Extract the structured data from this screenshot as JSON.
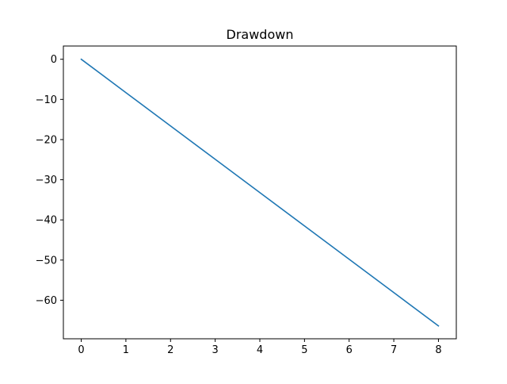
{
  "chart_data": {
    "type": "line",
    "title": "Drawdown",
    "xlabel": "",
    "ylabel": "",
    "x_ticks": [
      0,
      1,
      2,
      3,
      4,
      5,
      6,
      7,
      8
    ],
    "y_ticks": [
      0,
      -10,
      -20,
      -30,
      -40,
      -50,
      -60
    ],
    "y_tick_labels": [
      "0",
      "−10",
      "−20",
      "−30",
      "−40",
      "−50",
      "−60"
    ],
    "xlim": [
      -0.4,
      8.4
    ],
    "ylim": [
      -69.6,
      3.3
    ],
    "grid": false,
    "legend": "none",
    "series": [
      {
        "color": "#1f77b4",
        "x": [
          0,
          1,
          2,
          3,
          4,
          5,
          6,
          7,
          8
        ],
        "y": [
          0,
          -8.3,
          -16.6,
          -24.9,
          -33.2,
          -41.5,
          -49.8,
          -58.1,
          -66.4
        ]
      }
    ]
  }
}
